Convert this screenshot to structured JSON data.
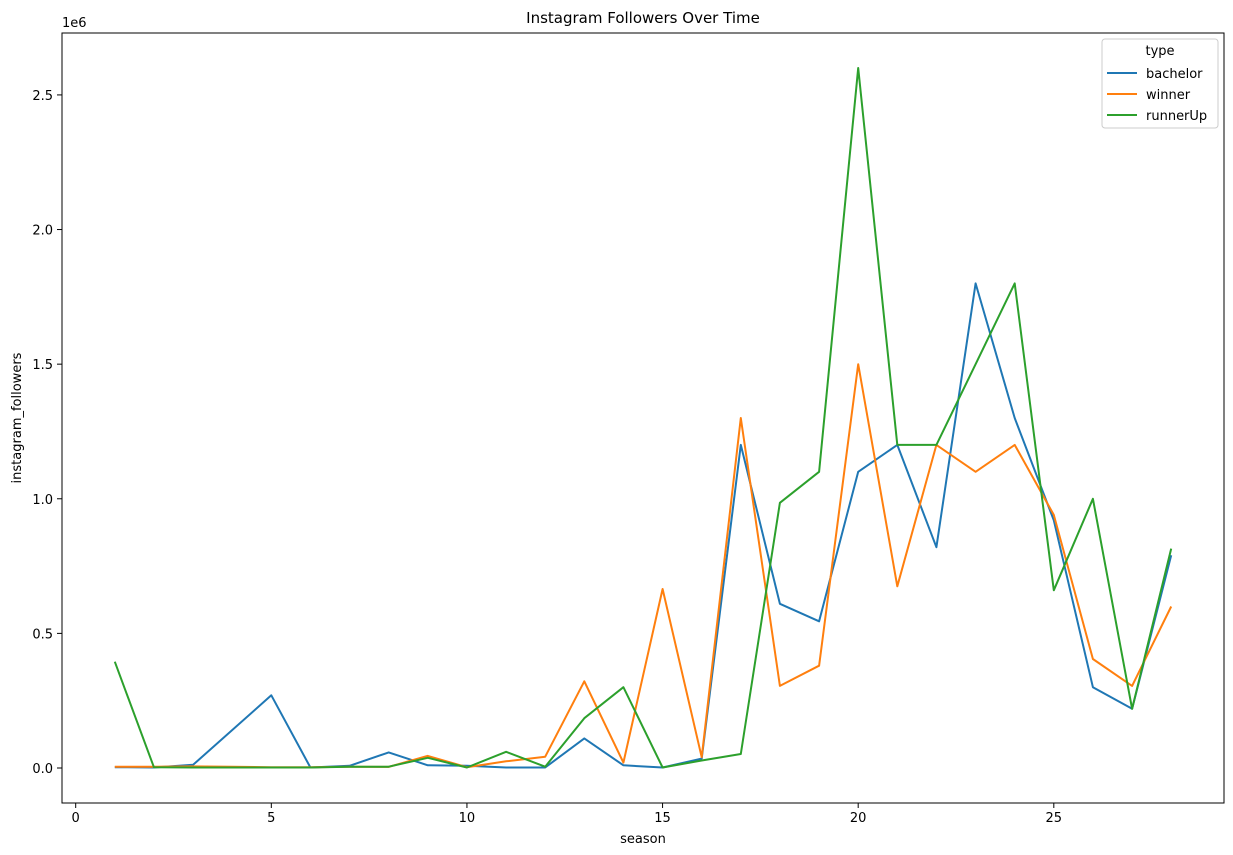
{
  "chart_data": {
    "type": "line",
    "title": "Instagram Followers Over Time",
    "xlabel": "season",
    "ylabel": "instagram_followers",
    "y_offset_label": "1e6",
    "y_scale": 1000000,
    "xlim": [
      -0.35,
      29.35
    ],
    "ylim": [
      -130000,
      2730000
    ],
    "x_ticks": [
      0,
      5,
      10,
      15,
      20,
      25
    ],
    "x_tick_labels": [
      "0",
      "5",
      "10",
      "15",
      "20",
      "25"
    ],
    "y_ticks": [
      0,
      500000,
      1000000,
      1500000,
      2000000,
      2500000
    ],
    "y_tick_labels": [
      "0.0",
      "0.5",
      "1.0",
      "1.5",
      "2.0",
      "2.5"
    ],
    "grid": false,
    "legend": {
      "title": "type",
      "placement": "top-right"
    },
    "series": [
      {
        "name": "bachelor",
        "color": "#1f77b4",
        "x": [
          1,
          2,
          3,
          5,
          6,
          7,
          8,
          9,
          10,
          11,
          12,
          13,
          14,
          15,
          16,
          17,
          18,
          19,
          20,
          21,
          22,
          23,
          24,
          25,
          26,
          27,
          28
        ],
        "y": [
          3000,
          2000,
          12000,
          270000,
          2000,
          8000,
          58000,
          10000,
          8000,
          2000,
          2000,
          110000,
          10000,
          2000,
          35000,
          1200000,
          610000,
          545000,
          1100000,
          1200000,
          820000,
          1800000,
          1300000,
          920000,
          300000,
          220000,
          790000
        ]
      },
      {
        "name": "winner",
        "color": "#ff7f0e",
        "x": [
          1,
          2,
          3,
          4,
          5,
          6,
          7,
          8,
          9,
          10,
          11,
          12,
          13,
          14,
          15,
          16,
          17,
          18,
          19,
          20,
          21,
          22,
          23,
          24,
          25,
          26,
          27,
          28
        ],
        "y": [
          5000,
          5000,
          6000,
          5000,
          3000,
          3000,
          5000,
          4000,
          45000,
          3000,
          25000,
          42000,
          322000,
          20000,
          665000,
          40000,
          1300000,
          305000,
          380000,
          1500000,
          675000,
          1200000,
          1100000,
          1200000,
          940000,
          405000,
          305000,
          600000
        ]
      },
      {
        "name": "runnerUp",
        "color": "#2ca02c",
        "x": [
          1,
          2,
          3,
          4,
          5,
          6,
          7,
          8,
          9,
          10,
          11,
          12,
          13,
          14,
          15,
          16,
          17,
          18,
          19,
          20,
          21,
          22,
          23,
          24,
          25,
          26,
          27,
          28
        ],
        "y": [
          395000,
          3000,
          2000,
          2000,
          2000,
          2000,
          5000,
          5000,
          38000,
          2000,
          60000,
          5000,
          185000,
          300000,
          2000,
          28000,
          52000,
          985000,
          1100000,
          2600000,
          1200000,
          1200000,
          1500000,
          1800000,
          660000,
          1000000,
          220000,
          815000
        ]
      }
    ]
  }
}
